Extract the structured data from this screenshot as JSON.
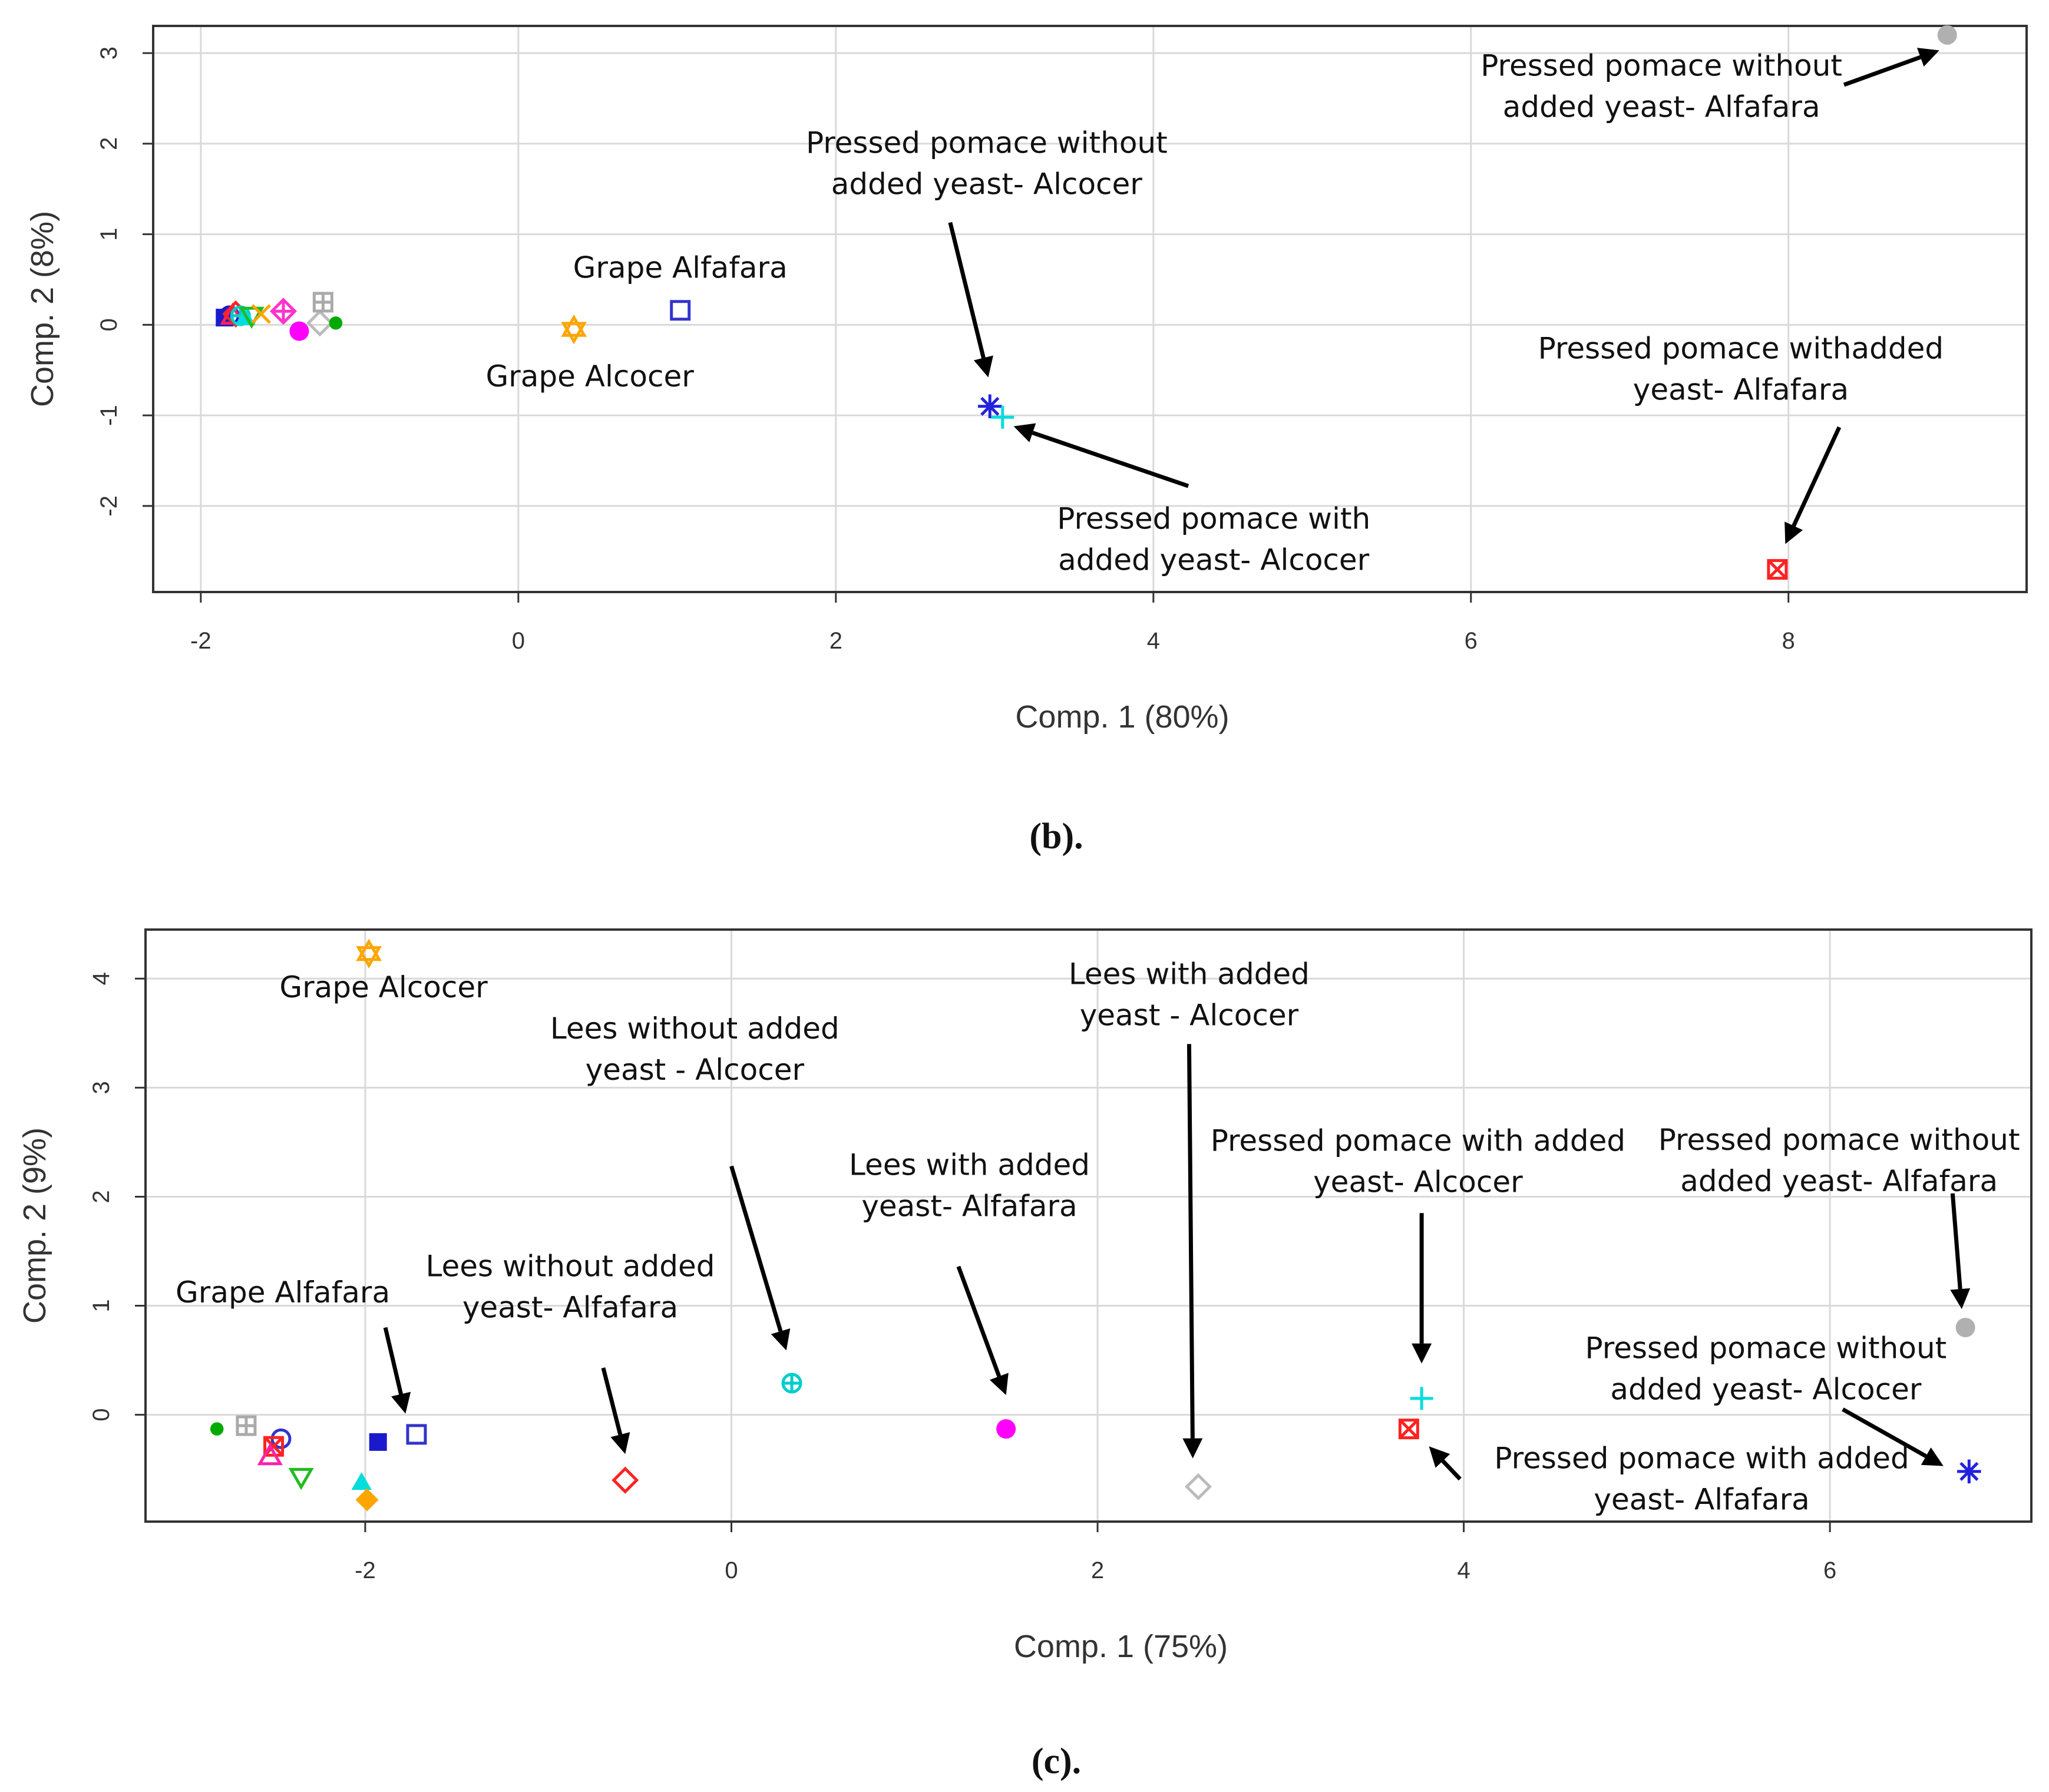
{
  "chart_data": [
    {
      "type": "scatter",
      "panel": "b",
      "caption": "(b).",
      "xlabel": "Comp. 1 (80%)",
      "ylabel": "Comp. 2 (8%)",
      "xlim": [
        -2.3,
        9.5
      ],
      "ylim": [
        -2.95,
        3.3
      ],
      "xticks": [
        -2,
        0,
        2,
        4,
        6,
        8
      ],
      "yticks": [
        -2,
        -1,
        0,
        1,
        2,
        3
      ],
      "grid": true,
      "points": [
        {
          "x": -1.85,
          "y": 0.08,
          "marker": "square-filled",
          "color": "#1a1acc"
        },
        {
          "x": -1.82,
          "y": 0.1,
          "marker": "circle-open",
          "color": "#1a1acc"
        },
        {
          "x": -1.8,
          "y": 0.1,
          "marker": "triangle-open",
          "color": "#ff2255"
        },
        {
          "x": -1.78,
          "y": 0.12,
          "marker": "diamond-open",
          "color": "#ff2222"
        },
        {
          "x": -1.75,
          "y": 0.1,
          "marker": "circle-plus",
          "color": "#00cccc"
        },
        {
          "x": -1.72,
          "y": 0.08,
          "marker": "triangle-filled",
          "color": "#00dddd"
        },
        {
          "x": -1.68,
          "y": 0.1,
          "marker": "triangle-down-open",
          "color": "#22bb22"
        },
        {
          "x": -1.62,
          "y": 0.12,
          "marker": "x",
          "color": "#ffa500"
        },
        {
          "x": -1.48,
          "y": 0.15,
          "marker": "diamond-plus",
          "color": "#ff33cc"
        },
        {
          "x": -1.38,
          "y": -0.07,
          "marker": "circle-filled",
          "color": "#ff00ff"
        },
        {
          "x": -1.25,
          "y": 0.02,
          "marker": "diamond-open",
          "color": "#bbbbbb"
        },
        {
          "x": -1.23,
          "y": 0.25,
          "marker": "square-plus",
          "color": "#aaaaaa"
        },
        {
          "x": -1.15,
          "y": 0.02,
          "marker": "dot-filled",
          "color": "#00aa00"
        },
        {
          "x": 0.35,
          "y": -0.05,
          "marker": "star6",
          "color": "#ffa500"
        },
        {
          "x": 1.02,
          "y": 0.16,
          "marker": "square-open",
          "color": "#3333cc"
        },
        {
          "x": 2.97,
          "y": -0.9,
          "marker": "asterisk",
          "color": "#2222dd"
        },
        {
          "x": 3.05,
          "y": -1.02,
          "marker": "plus",
          "color": "#00dddd"
        },
        {
          "x": 7.93,
          "y": -2.7,
          "marker": "square-x",
          "color": "#ff2222"
        },
        {
          "x": 9.0,
          "y": 3.2,
          "marker": "circle-filled",
          "color": "#b0b0b0"
        }
      ],
      "annotations": [
        {
          "lines": [
            "Pressed pomace without",
            "added yeast- Alfafara"
          ],
          "tx": 7.2,
          "ty": 2.75,
          "arrow": [
            [
              8.35,
              2.65
            ],
            [
              8.95,
              3.03
            ]
          ]
        },
        {
          "lines": [
            "Pressed pomace without",
            "added yeast- Alcocer"
          ],
          "tx": 2.95,
          "ty": 1.9,
          "arrow": [
            [
              2.72,
              1.13
            ],
            [
              2.96,
              -0.58
            ]
          ]
        },
        {
          "lines": [
            "Grape Alfafara"
          ],
          "tx": 1.02,
          "ty": 0.52,
          "arrow": null
        },
        {
          "lines": [
            "Grape Alcocer"
          ],
          "tx": 0.45,
          "ty": -0.68,
          "arrow": null
        },
        {
          "lines": [
            "Pressed pomace withadded",
            "yeast- Alfafara"
          ],
          "tx": 7.7,
          "ty": -0.37,
          "arrow": [
            [
              8.32,
              -1.13
            ],
            [
              7.98,
              -2.42
            ]
          ]
        },
        {
          "lines": [
            "Pressed pomace with",
            "added yeast- Alcocer"
          ],
          "tx": 4.38,
          "ty": -2.25,
          "arrow": [
            [
              4.22,
              -1.78
            ],
            [
              3.12,
              -1.12
            ]
          ]
        }
      ]
    },
    {
      "type": "scatter",
      "panel": "c",
      "caption": "(c).",
      "xlabel": "Comp. 1 (75%)",
      "ylabel": "Comp. 2 (9%)",
      "xlim": [
        -3.2,
        7.1
      ],
      "ylim": [
        -0.98,
        4.45
      ],
      "xticks": [
        -2,
        0,
        2,
        4,
        6
      ],
      "yticks": [
        0,
        1,
        2,
        3,
        4
      ],
      "grid": true,
      "points": [
        {
          "x": -2.81,
          "y": -0.13,
          "marker": "dot-filled",
          "color": "#00aa00"
        },
        {
          "x": -2.65,
          "y": -0.1,
          "marker": "square-plus",
          "color": "#aaaaaa"
        },
        {
          "x": -2.46,
          "y": -0.22,
          "marker": "circle-open",
          "color": "#3333cc"
        },
        {
          "x": -2.5,
          "y": -0.29,
          "marker": "square-x",
          "color": "#ff2222"
        },
        {
          "x": -2.52,
          "y": -0.38,
          "marker": "triangle-open",
          "color": "#ff22aa"
        },
        {
          "x": -2.35,
          "y": -0.57,
          "marker": "triangle-down-open",
          "color": "#22bb22"
        },
        {
          "x": -2.02,
          "y": -0.62,
          "marker": "triangle-filled",
          "color": "#00dddd"
        },
        {
          "x": -1.99,
          "y": -0.78,
          "marker": "diamond-filled",
          "color": "#ffa500"
        },
        {
          "x": -1.93,
          "y": -0.25,
          "marker": "square-filled",
          "color": "#1a1acc"
        },
        {
          "x": -1.72,
          "y": -0.18,
          "marker": "square-open",
          "color": "#3333cc"
        },
        {
          "x": -1.98,
          "y": 4.23,
          "marker": "star6",
          "color": "#ffa500"
        },
        {
          "x": -0.58,
          "y": -0.6,
          "marker": "diamond-open",
          "color": "#ff2222"
        },
        {
          "x": 0.33,
          "y": 0.29,
          "marker": "circle-plus",
          "color": "#00cccc"
        },
        {
          "x": 1.5,
          "y": -0.13,
          "marker": "circle-filled",
          "color": "#ff00ff"
        },
        {
          "x": 2.55,
          "y": -0.66,
          "marker": "diamond-open",
          "color": "#bbbbbb"
        },
        {
          "x": 3.7,
          "y": -0.13,
          "marker": "square-x",
          "color": "#ff2222"
        },
        {
          "x": 3.77,
          "y": 0.15,
          "marker": "plus",
          "color": "#00dddd"
        },
        {
          "x": 6.74,
          "y": 0.8,
          "marker": "circle-filled",
          "color": "#b0b0b0"
        },
        {
          "x": 6.76,
          "y": -0.52,
          "marker": "asterisk",
          "color": "#2222dd"
        }
      ],
      "annotations": [
        {
          "lines": [
            "Grape Alcocer"
          ],
          "tx": -1.9,
          "ty": 3.83,
          "arrow": null
        },
        {
          "lines": [
            "Lees without added",
            "yeast - Alcocer"
          ],
          "tx": -0.2,
          "ty": 3.45,
          "arrow": [
            [
              0.0,
              2.28
            ],
            [
              0.3,
              0.59
            ]
          ]
        },
        {
          "lines": [
            "Lees with added",
            "yeast - Alcocer"
          ],
          "tx": 2.5,
          "ty": 3.95,
          "arrow": [
            [
              2.5,
              3.4
            ],
            [
              2.52,
              -0.4
            ]
          ]
        },
        {
          "lines": [
            "Lees with added",
            "yeast- Alfafara"
          ],
          "tx": 1.3,
          "ty": 2.2,
          "arrow": [
            [
              1.24,
              1.36
            ],
            [
              1.5,
              0.18
            ]
          ]
        },
        {
          "lines": [
            "Pressed pomace with added",
            "yeast- Alcocer"
          ],
          "tx": 3.75,
          "ty": 2.42,
          "arrow": [
            [
              3.77,
              1.85
            ],
            [
              3.77,
              0.47
            ]
          ]
        },
        {
          "lines": [
            "Pressed pomace without",
            "added yeast- Alfafara"
          ],
          "tx": 6.05,
          "ty": 2.43,
          "arrow": [
            [
              6.67,
              2.03
            ],
            [
              6.72,
              0.97
            ]
          ]
        },
        {
          "lines": [
            "Grape Alfafara"
          ],
          "tx": -2.45,
          "ty": 1.03,
          "arrow": [
            [
              -1.89,
              0.8
            ],
            [
              -1.78,
              0.01
            ]
          ]
        },
        {
          "lines": [
            "Lees without added",
            "yeast- Alfafara"
          ],
          "tx": -0.88,
          "ty": 1.27,
          "arrow": [
            [
              -0.7,
              0.43
            ],
            [
              -0.58,
              -0.36
            ]
          ]
        },
        {
          "lines": [
            "Pressed pomace without",
            "added yeast- Alcocer"
          ],
          "tx": 5.65,
          "ty": 0.52,
          "arrow": [
            [
              6.07,
              0.05
            ],
            [
              6.62,
              -0.47
            ]
          ]
        },
        {
          "lines": [
            "Pressed pomace with added",
            "yeast- Alfafara"
          ],
          "tx": 5.3,
          "ty": -0.49,
          "arrow": [
            [
              3.98,
              -0.59
            ],
            [
              3.81,
              -0.29
            ]
          ]
        }
      ]
    }
  ]
}
